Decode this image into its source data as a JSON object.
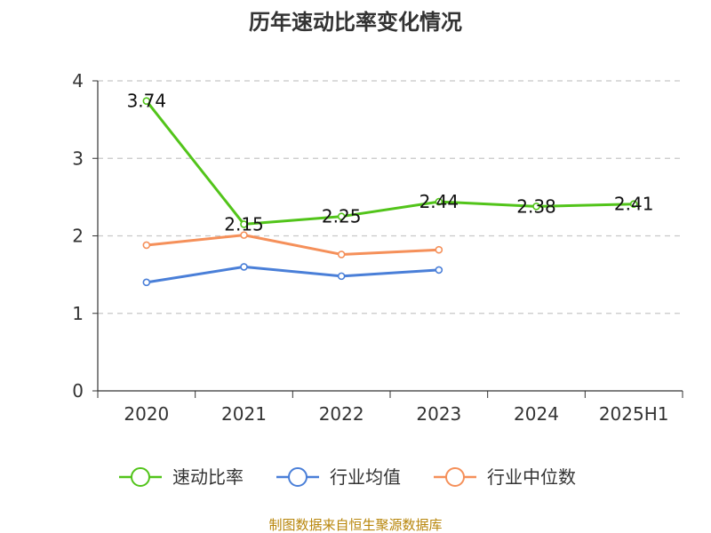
{
  "chart_data": {
    "type": "line",
    "title": "历年速动比率变化情况",
    "categories": [
      "2020",
      "2021",
      "2022",
      "2023",
      "2024",
      "2025H1"
    ],
    "ylim": [
      0,
      4
    ],
    "yticks": [
      "0",
      "1",
      "2",
      "3",
      "4"
    ],
    "grid": true,
    "legend_position": "bottom",
    "series": [
      {
        "name": "速动比率",
        "color": "#52c41a",
        "values": [
          3.74,
          2.15,
          2.25,
          2.44,
          2.38,
          2.41
        ],
        "labels": [
          "3.74",
          "2.15",
          "2.25",
          "2.44",
          "2.38",
          "2.41"
        ]
      },
      {
        "name": "行业均值",
        "color": "#4a7fd8",
        "values": [
          1.4,
          1.6,
          1.48,
          1.56,
          null,
          null
        ]
      },
      {
        "name": "行业中位数",
        "color": "#f5905a",
        "values": [
          1.88,
          2.01,
          1.76,
          1.82,
          null,
          null
        ]
      }
    ],
    "source": "制图数据来自恒生聚源数据库"
  }
}
